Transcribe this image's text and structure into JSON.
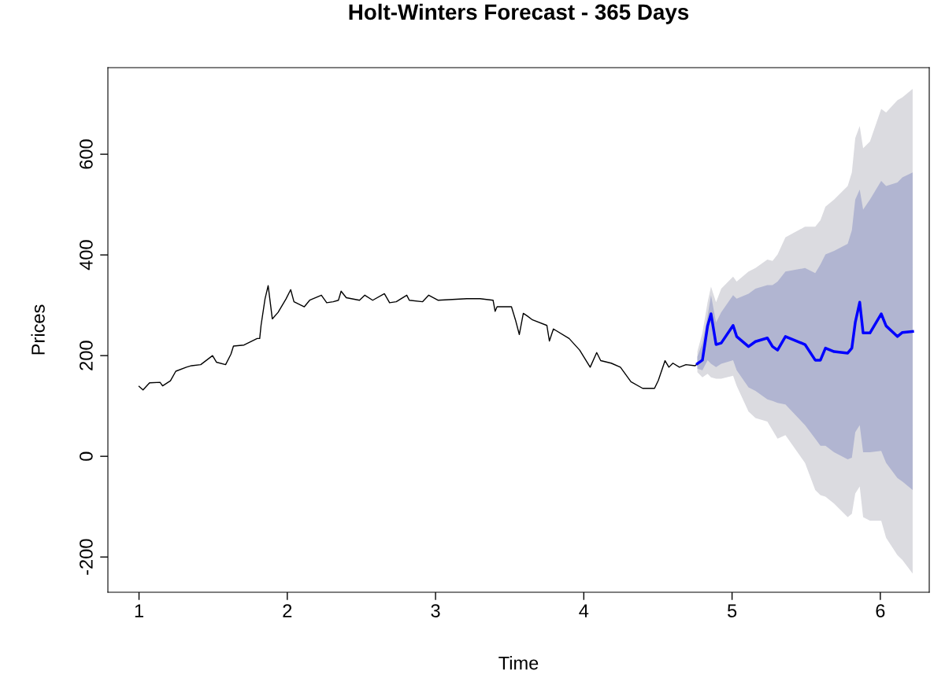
{
  "chart_data": {
    "type": "line",
    "title": "Holt-Winters Forecast - 365 Days",
    "xlabel": "Time",
    "ylabel": "Prices",
    "xlim": [
      0.79,
      6.33
    ],
    "ylim": [
      -270,
      772
    ],
    "xticks": [
      1,
      2,
      3,
      4,
      5,
      6
    ],
    "yticks": [
      -200,
      0,
      200,
      400,
      600
    ],
    "grid": false,
    "marker": "none",
    "line_style": "solid",
    "series": [
      {
        "type": "area",
        "color": "#dbdbe0",
        "x": [
          4.766,
          4.8,
          4.835,
          4.858,
          4.892,
          4.927,
          5.007,
          5.031,
          5.111,
          5.158,
          5.238,
          5.273,
          5.307,
          5.36,
          5.492,
          5.561,
          5.596,
          5.63,
          5.688,
          5.78,
          5.808,
          5.831,
          5.861,
          5.884,
          5.93,
          6.006,
          6.039,
          6.115,
          6.149,
          6.218
        ],
        "values": [
          null,
          null,
          null,
          null,
          null,
          null,
          null,
          null,
          null,
          null,
          null,
          null,
          null,
          null,
          null,
          null,
          null,
          null,
          null,
          null,
          null,
          null,
          null,
          null,
          null,
          null,
          null,
          null,
          null,
          null
        ],
        "lower": [
          167,
          157,
          164,
          157,
          154,
          154,
          160,
          140,
          89,
          76,
          69,
          52,
          35,
          42,
          -13,
          -67,
          -77,
          -80,
          -94,
          -121,
          -114,
          -74,
          -60,
          -121,
          -128,
          -128,
          -162,
          -196,
          -206,
          -233
        ],
        "upper": [
          208,
          245,
          306,
          337,
          306,
          333,
          357,
          347,
          367,
          374,
          391,
          388,
          401,
          435,
          456,
          456,
          469,
          496,
          510,
          537,
          564,
          632,
          656,
          612,
          625,
          690,
          683,
          707,
          713,
          730
        ]
      },
      {
        "color": "#000000",
        "x": [
          1.0,
          1.027,
          1.071,
          1.142,
          1.159,
          1.212,
          1.248,
          1.319,
          1.354,
          1.416,
          1.496,
          1.522,
          1.584,
          1.62,
          1.637,
          1.708,
          1.797,
          1.814,
          1.823,
          1.85,
          1.871,
          1.899,
          1.938,
          1.992,
          2.023,
          2.045,
          2.115,
          2.151,
          2.23,
          2.266,
          2.31,
          2.345,
          2.363,
          2.398,
          2.487,
          2.523,
          2.576,
          2.655,
          2.69,
          2.735,
          2.806,
          2.823,
          2.912,
          2.954,
          3.016,
          3.211,
          3.3,
          3.388,
          3.402,
          3.415,
          3.512,
          3.539,
          3.565,
          3.592,
          3.618,
          3.654,
          3.751,
          3.768,
          3.795,
          3.901,
          3.972,
          4.043,
          4.087,
          4.114,
          4.185,
          4.247,
          4.318,
          4.397,
          4.477,
          4.503,
          4.548,
          4.574,
          4.601,
          4.645,
          4.689,
          4.751,
          4.766
        ],
        "values": [
          139,
          132,
          146,
          147,
          140,
          150,
          169,
          177,
          180,
          182,
          200,
          187,
          182,
          203,
          219,
          221,
          234,
          234,
          260,
          313,
          339,
          273,
          286,
          313,
          331,
          307,
          297,
          310,
          320,
          305,
          307,
          310,
          328,
          315,
          310,
          320,
          310,
          323,
          305,
          307,
          320,
          310,
          307,
          320,
          310,
          313,
          313,
          310,
          288,
          297,
          297,
          271,
          242,
          284,
          279,
          271,
          260,
          229,
          253,
          234,
          211,
          177,
          206,
          190,
          185,
          177,
          148,
          135,
          135,
          151,
          190,
          177,
          185,
          177,
          182,
          180,
          184
        ]
      },
      {
        "color": "#0000ff",
        "x": [
          4.766,
          4.8,
          4.835,
          4.858,
          4.892,
          4.927,
          5.007,
          5.031,
          5.111,
          5.158,
          5.238,
          5.273,
          5.307,
          5.36,
          5.492,
          5.561,
          5.596,
          5.63,
          5.688,
          5.78,
          5.808,
          5.831,
          5.861,
          5.884,
          5.93,
          6.006,
          6.039,
          6.115,
          6.149,
          6.218
        ],
        "values": [
          184,
          191,
          259,
          283,
          222,
          225,
          260,
          238,
          218,
          228,
          235,
          218,
          211,
          238,
          222,
          191,
          191,
          215,
          208,
          205,
          215,
          266,
          306,
          245,
          245,
          283,
          259,
          238,
          246,
          248
        ]
      },
      {
        "type": "area",
        "color": "#b1b5d1",
        "x": [
          4.766,
          4.8,
          4.835,
          4.858,
          4.892,
          4.927,
          5.007,
          5.031,
          5.111,
          5.158,
          5.238,
          5.273,
          5.307,
          5.36,
          5.492,
          5.561,
          5.596,
          5.63,
          5.688,
          5.78,
          5.808,
          5.831,
          5.861,
          5.884,
          5.93,
          6.006,
          6.039,
          6.115,
          6.149,
          6.218
        ],
        "values": [
          null,
          null,
          null,
          null,
          null,
          null,
          null,
          null,
          null,
          null,
          null,
          null,
          null,
          null,
          null,
          null,
          null,
          null,
          null,
          null,
          null,
          null,
          null,
          null,
          null,
          null,
          null,
          null,
          null,
          null
        ],
        "lower": [
          174,
          171,
          191,
          184,
          177,
          184,
          191,
          171,
          137,
          130,
          113,
          110,
          106,
          103,
          62,
          35,
          21,
          21,
          8,
          -6,
          -3,
          48,
          62,
          8,
          8,
          11,
          -13,
          -43,
          -50,
          -67
        ],
        "upper": [
          198,
          225,
          279,
          320,
          266,
          286,
          320,
          313,
          323,
          333,
          340,
          340,
          347,
          367,
          374,
          364,
          381,
          401,
          408,
          422,
          449,
          510,
          530,
          490,
          510,
          547,
          537,
          544,
          554,
          564
        ]
      }
    ]
  }
}
